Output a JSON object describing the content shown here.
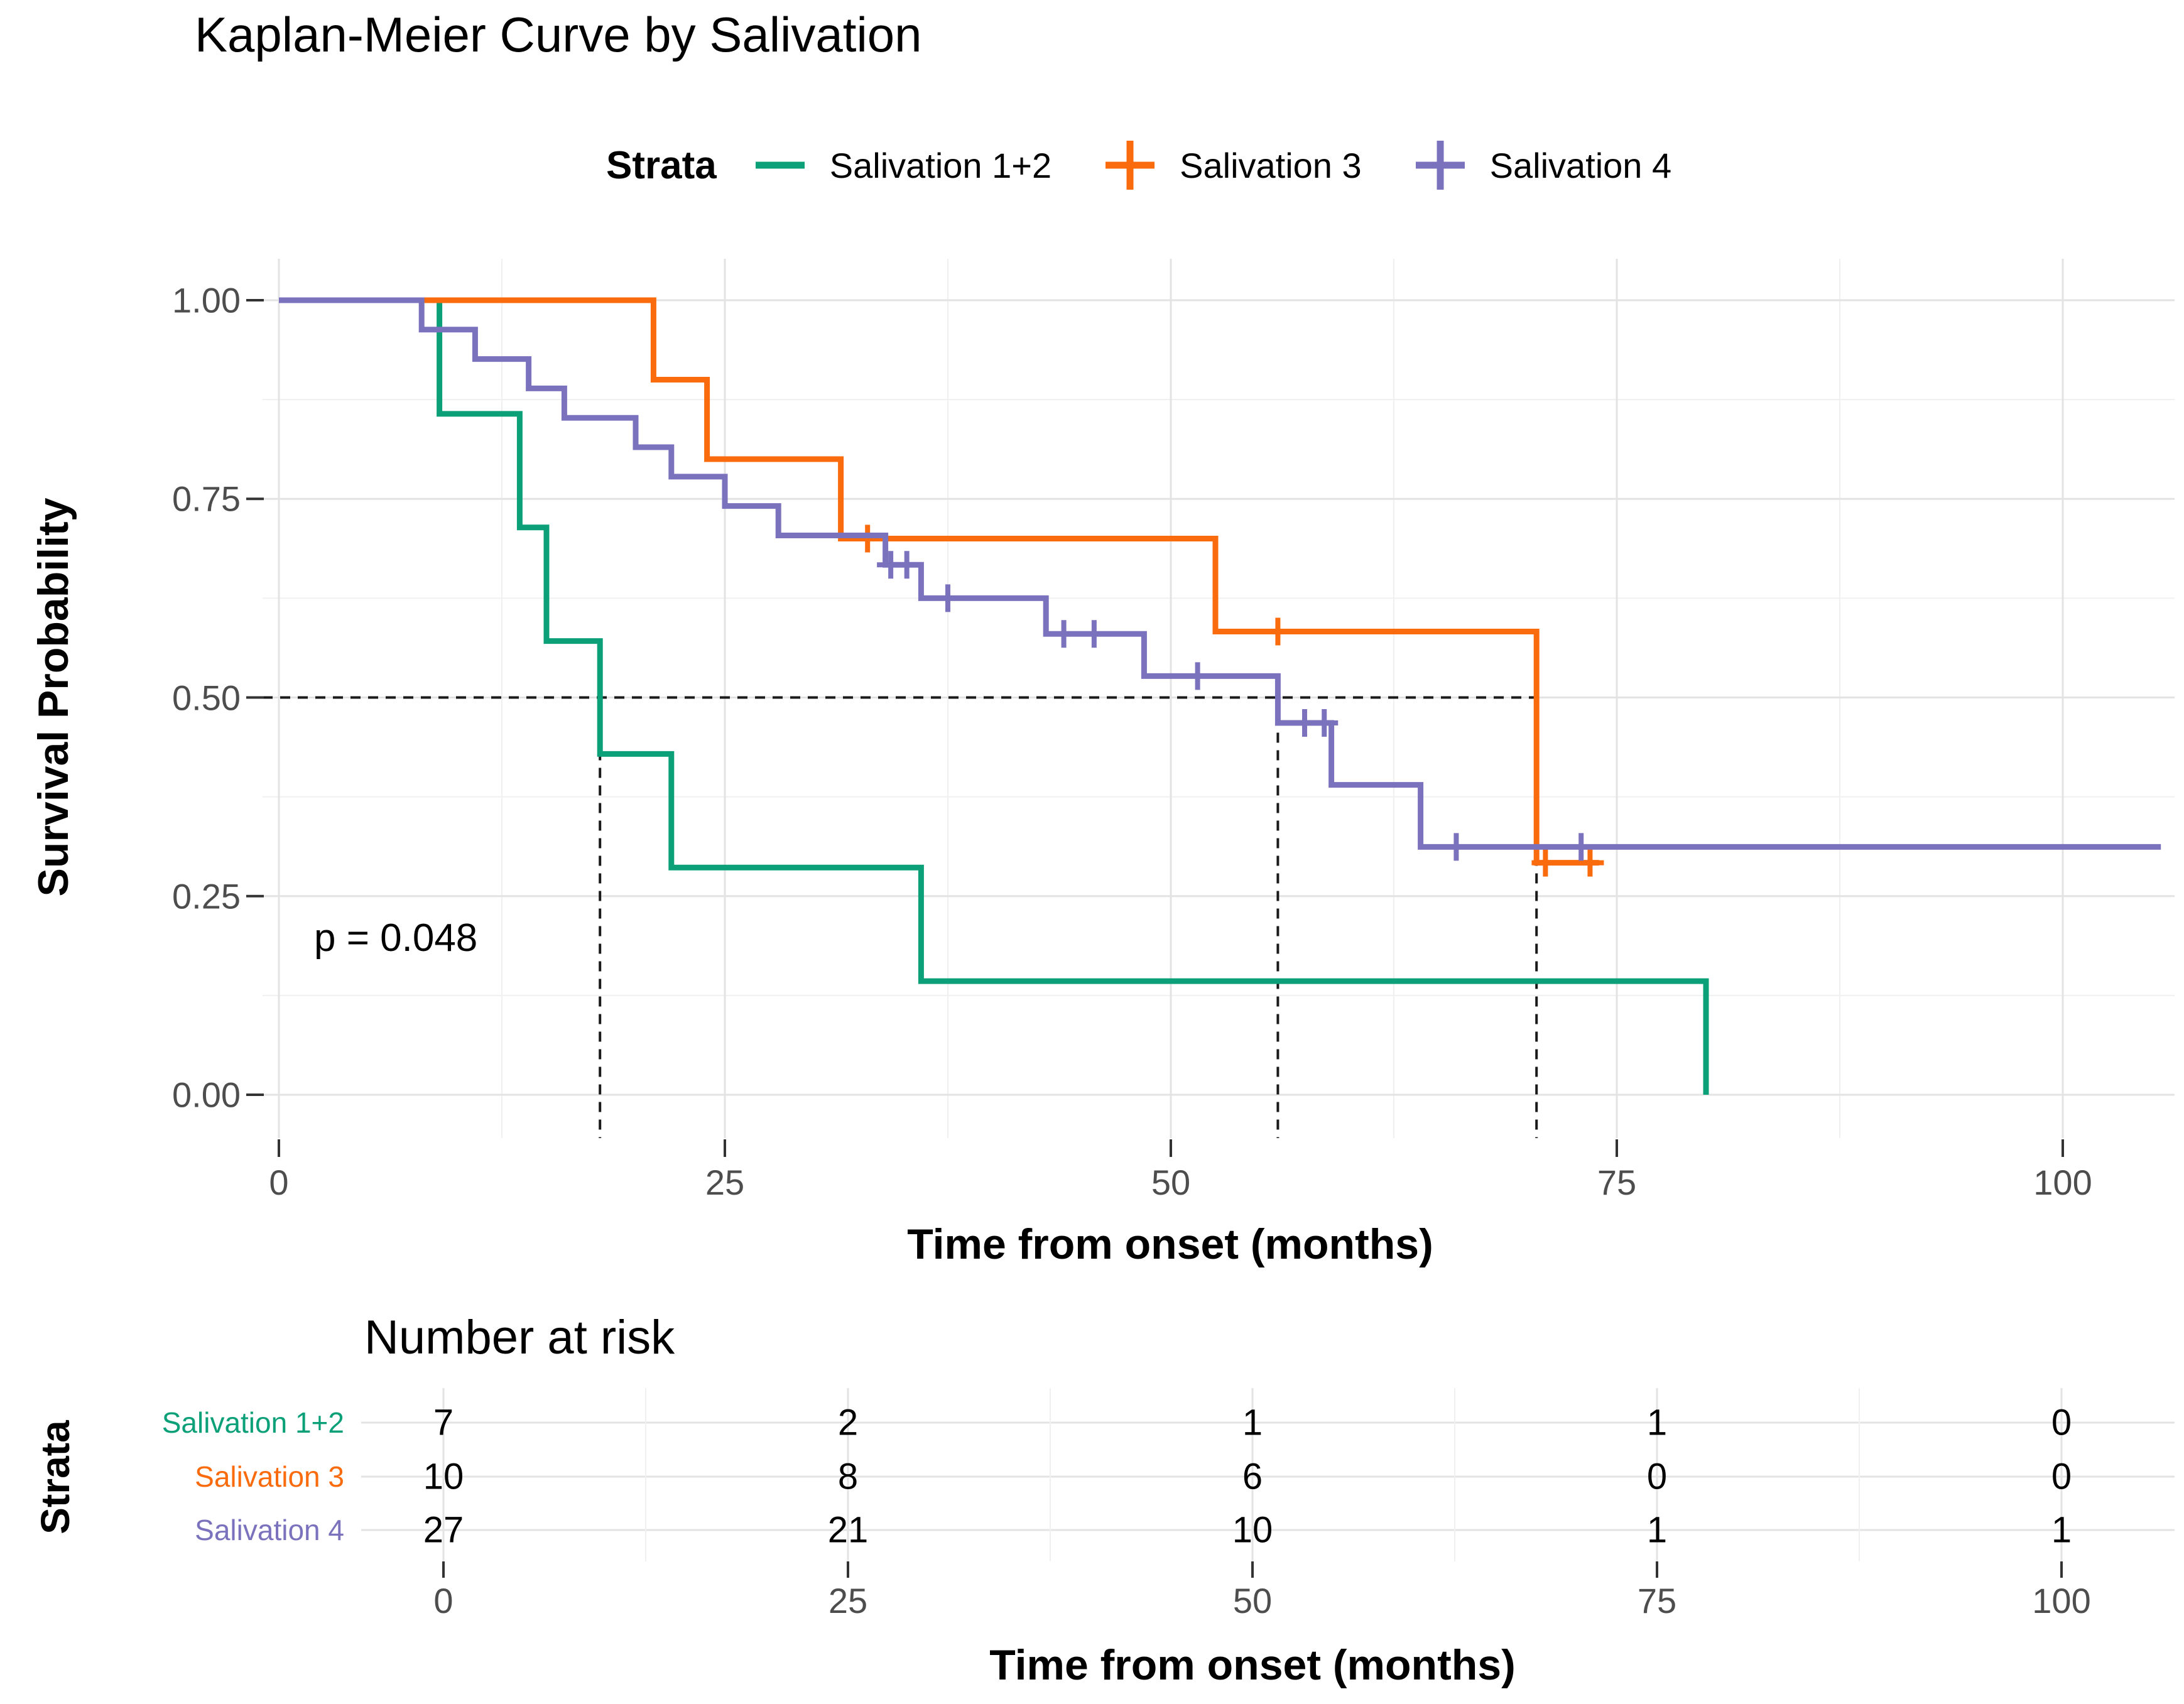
{
  "page": {
    "background": "#FFFFFF"
  },
  "chart_data": {
    "type": "line",
    "subtype": "kaplan-meier-step-curve",
    "title": "Kaplan-Meier Curve by Salivation",
    "xlabel": "Time from onset (months)",
    "ylabel": "Survival Probability",
    "legend_title": "Strata",
    "legend_position": "top",
    "grid": true,
    "xlim": [
      -1,
      106
    ],
    "ylim": [
      0,
      1.05
    ],
    "x_ticks": [
      0,
      25,
      50,
      75,
      100
    ],
    "x_tick_labels": [
      "0",
      "25",
      "50",
      "75",
      "100"
    ],
    "y_ticks": [
      1.0,
      0.75,
      0.5,
      0.25,
      0.0
    ],
    "y_tick_labels": [
      "1.00",
      "0.75",
      "0.50",
      "0.25",
      "0.00"
    ],
    "p_value_label": "p = 0.048",
    "median_reference": {
      "survival": 0.5,
      "h_line_to_time": 70.5,
      "vertical_lines_at_times": [
        18,
        56,
        70.5
      ]
    },
    "series": [
      {
        "name": "Salivation 1+2",
        "color": "#0CA078",
        "legend_has_plus": false,
        "steps": [
          [
            0,
            1.0
          ],
          [
            9,
            0.857
          ],
          [
            13.5,
            0.714
          ],
          [
            15,
            0.571
          ],
          [
            18,
            0.429
          ],
          [
            22,
            0.286
          ],
          [
            36,
            0.143
          ],
          [
            80,
            0.0
          ]
        ],
        "end_time": 80,
        "censor_marks": []
      },
      {
        "name": "Salivation 3",
        "color": "#F96B0D",
        "legend_has_plus": true,
        "steps": [
          [
            0,
            1.0
          ],
          [
            21,
            0.9
          ],
          [
            24,
            0.8
          ],
          [
            31.5,
            0.7
          ],
          [
            52.5,
            0.583
          ],
          [
            70.5,
            0.292
          ]
        ],
        "end_time": 74,
        "censor_marks": [
          [
            33,
            0.7
          ],
          [
            56,
            0.583
          ],
          [
            71,
            0.292
          ],
          [
            73.5,
            0.292
          ]
        ]
      },
      {
        "name": "Salivation 4",
        "color": "#7B72BD",
        "legend_has_plus": true,
        "steps": [
          [
            0,
            1.0
          ],
          [
            8,
            0.963
          ],
          [
            11,
            0.926
          ],
          [
            14,
            0.889
          ],
          [
            16,
            0.852
          ],
          [
            20,
            0.815
          ],
          [
            22,
            0.778
          ],
          [
            25,
            0.741
          ],
          [
            28,
            0.704
          ],
          [
            34,
            0.667
          ],
          [
            36,
            0.625
          ],
          [
            43,
            0.58
          ],
          [
            48.5,
            0.527
          ],
          [
            56,
            0.468
          ],
          [
            59,
            0.39
          ],
          [
            64,
            0.312
          ]
        ],
        "end_time": 105.5,
        "censor_marks": [
          [
            34.3,
            0.667
          ],
          [
            35.2,
            0.667
          ],
          [
            37.5,
            0.625
          ],
          [
            44,
            0.58
          ],
          [
            45.7,
            0.58
          ],
          [
            51.5,
            0.527
          ],
          [
            57.5,
            0.468
          ],
          [
            58.6,
            0.468
          ],
          [
            66,
            0.312
          ],
          [
            73,
            0.312
          ]
        ]
      }
    ],
    "risk_table": {
      "title": "Number at risk",
      "ylabel": "Strata",
      "xlabel": "Time from onset (months)",
      "times": [
        0,
        25,
        50,
        75,
        100
      ],
      "time_labels": [
        "0",
        "25",
        "50",
        "75",
        "100"
      ],
      "rows": [
        {
          "label": "Salivation 1+2",
          "color": "#0CA078",
          "counts": [
            "7",
            "2",
            "1",
            "1",
            "0"
          ]
        },
        {
          "label": "Salivation 3",
          "color": "#F96B0D",
          "counts": [
            "10",
            "8",
            "6",
            "0",
            "0"
          ]
        },
        {
          "label": "Salivation 4",
          "color": "#7B72BD",
          "counts": [
            "27",
            "21",
            "10",
            "1",
            "1"
          ]
        }
      ]
    }
  }
}
